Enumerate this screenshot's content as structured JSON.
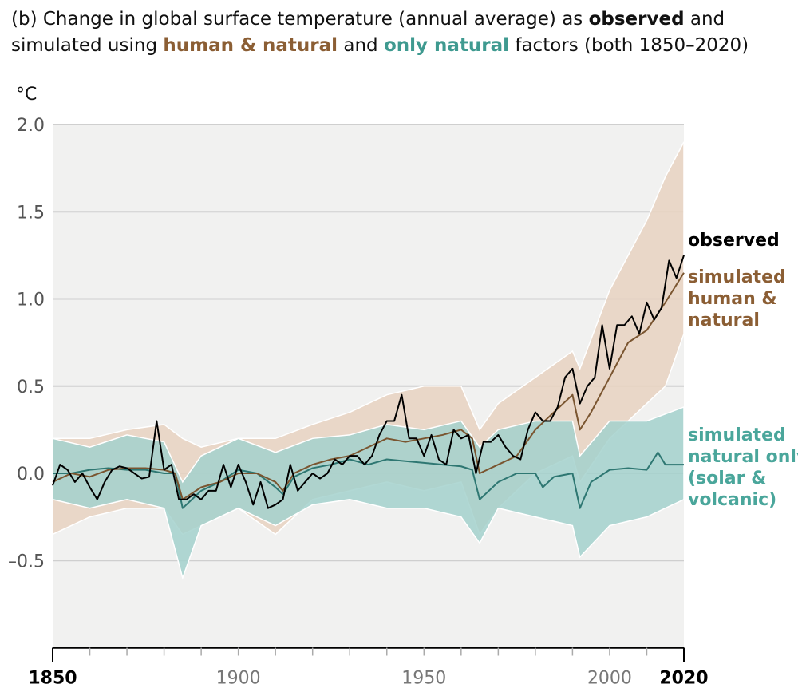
{
  "title": {
    "prefix": "(b) Change in global surface temperature (annual average) as ",
    "observed": "observed",
    "mid1": " and simulated using ",
    "human_natural": "human & natural",
    "mid2": " and ",
    "only_natural": "only natural",
    "suffix": " factors (both 1850–2020)"
  },
  "chart_data": {
    "type": "line",
    "ylabel": "°C",
    "ylim": [
      -1.0,
      2.0
    ],
    "xlim": [
      1850,
      2020
    ],
    "yticks": [
      2.0,
      1.5,
      1.0,
      0.5,
      0.0,
      -0.5
    ],
    "ytick_labels": [
      "2.0",
      "1.5",
      "1.0",
      "0.5",
      "0.0",
      "–0.5"
    ],
    "xticks_labeled": [
      {
        "value": 1850,
        "label": "1850",
        "bold": true
      },
      {
        "value": 1900,
        "label": "1900",
        "bold": false
      },
      {
        "value": 1950,
        "label": "1950",
        "bold": false
      },
      {
        "value": 2000,
        "label": "2000",
        "bold": false
      },
      {
        "value": 2020,
        "label": "2020",
        "bold": true
      }
    ],
    "xtick_minor_step": 10,
    "grid": "horizontal",
    "colors": {
      "plot_bg": "#f1f1f0",
      "observed": "#000000",
      "human_natural": "#7a5530",
      "human_natural_band": "#e8d2c1",
      "natural": "#2e7772",
      "natural_band": "#a3d1cc",
      "natural_label": "#4aa69b",
      "human_label": "#8b5e34"
    },
    "series": [
      {
        "name": "observed",
        "label_lines": [
          "observed"
        ],
        "x": [
          1850,
          1852,
          1854,
          1856,
          1858,
          1860,
          1862,
          1864,
          1866,
          1868,
          1870,
          1872,
          1874,
          1876,
          1878,
          1880,
          1882,
          1884,
          1886,
          1888,
          1890,
          1892,
          1894,
          1896,
          1898,
          1900,
          1902,
          1904,
          1906,
          1908,
          1910,
          1912,
          1914,
          1916,
          1918,
          1920,
          1922,
          1924,
          1926,
          1928,
          1930,
          1932,
          1934,
          1936,
          1938,
          1940,
          1942,
          1944,
          1946,
          1948,
          1950,
          1952,
          1954,
          1956,
          1958,
          1960,
          1962,
          1964,
          1966,
          1968,
          1970,
          1972,
          1974,
          1976,
          1978,
          1980,
          1982,
          1984,
          1986,
          1988,
          1990,
          1992,
          1994,
          1996,
          1998,
          2000,
          2002,
          2004,
          2006,
          2008,
          2010,
          2012,
          2014,
          2016,
          2018,
          2020
        ],
        "y": [
          -0.07,
          0.05,
          0.02,
          -0.05,
          0.0,
          -0.08,
          -0.15,
          -0.05,
          0.02,
          0.04,
          0.03,
          0.0,
          -0.03,
          -0.02,
          0.3,
          0.02,
          0.05,
          -0.15,
          -0.15,
          -0.12,
          -0.15,
          -0.1,
          -0.1,
          0.05,
          -0.08,
          0.05,
          -0.05,
          -0.18,
          -0.05,
          -0.2,
          -0.18,
          -0.15,
          0.05,
          -0.1,
          -0.05,
          0.0,
          -0.03,
          0.0,
          0.08,
          0.05,
          0.1,
          0.1,
          0.05,
          0.1,
          0.22,
          0.3,
          0.3,
          0.45,
          0.2,
          0.2,
          0.1,
          0.22,
          0.08,
          0.05,
          0.25,
          0.2,
          0.22,
          0.0,
          0.18,
          0.18,
          0.22,
          0.15,
          0.1,
          0.08,
          0.25,
          0.35,
          0.3,
          0.3,
          0.38,
          0.55,
          0.6,
          0.4,
          0.5,
          0.55,
          0.85,
          0.6,
          0.85,
          0.85,
          0.9,
          0.8,
          0.98,
          0.88,
          0.95,
          1.22,
          1.12,
          1.25
        ]
      },
      {
        "name": "simulated human & natural",
        "label_lines": [
          "simulated",
          "human &",
          "natural"
        ],
        "x": [
          1850,
          1855,
          1860,
          1865,
          1870,
          1875,
          1880,
          1883,
          1885,
          1890,
          1895,
          1900,
          1905,
          1910,
          1912,
          1915,
          1920,
          1925,
          1930,
          1935,
          1940,
          1945,
          1950,
          1955,
          1960,
          1963,
          1965,
          1970,
          1975,
          1980,
          1985,
          1990,
          1992,
          1995,
          2000,
          2005,
          2010,
          2015,
          2020
        ],
        "y": [
          -0.05,
          0.0,
          -0.02,
          0.02,
          0.03,
          0.03,
          0.02,
          0.0,
          -0.15,
          -0.08,
          -0.05,
          0.0,
          0.0,
          -0.05,
          -0.1,
          0.0,
          0.05,
          0.08,
          0.1,
          0.15,
          0.2,
          0.18,
          0.2,
          0.22,
          0.25,
          0.2,
          0.0,
          0.05,
          0.1,
          0.25,
          0.35,
          0.45,
          0.25,
          0.35,
          0.55,
          0.75,
          0.82,
          0.98,
          1.15
        ],
        "band": {
          "x": [
            1850,
            1860,
            1870,
            1880,
            1885,
            1890,
            1900,
            1910,
            1920,
            1930,
            1940,
            1950,
            1960,
            1965,
            1970,
            1980,
            1990,
            1992,
            2000,
            2010,
            2015,
            2020
          ],
          "upper": [
            0.2,
            0.2,
            0.25,
            0.28,
            0.2,
            0.15,
            0.2,
            0.2,
            0.28,
            0.35,
            0.45,
            0.5,
            0.5,
            0.25,
            0.4,
            0.55,
            0.7,
            0.6,
            1.05,
            1.45,
            1.7,
            1.9
          ],
          "lower": [
            -0.35,
            -0.25,
            -0.2,
            -0.2,
            -0.35,
            -0.3,
            -0.2,
            -0.35,
            -0.15,
            -0.1,
            -0.05,
            -0.1,
            -0.05,
            -0.35,
            -0.2,
            0.0,
            0.1,
            -0.05,
            0.2,
            0.4,
            0.5,
            0.8
          ]
        }
      },
      {
        "name": "simulated natural only (solar & volcanic)",
        "label_lines": [
          "simulated",
          "natural only",
          "(solar &",
          "volcanic)"
        ],
        "x": [
          1850,
          1855,
          1860,
          1865,
          1870,
          1875,
          1880,
          1883,
          1885,
          1890,
          1895,
          1900,
          1905,
          1910,
          1912,
          1915,
          1920,
          1925,
          1930,
          1935,
          1940,
          1945,
          1950,
          1955,
          1960,
          1963,
          1965,
          1970,
          1975,
          1980,
          1982,
          1985,
          1990,
          1992,
          1995,
          2000,
          2005,
          2010,
          2013,
          2015,
          2020
        ],
        "y": [
          0.0,
          0.0,
          0.02,
          0.03,
          0.02,
          0.02,
          0.0,
          0.0,
          -0.2,
          -0.1,
          -0.05,
          0.02,
          0.0,
          -0.08,
          -0.12,
          -0.02,
          0.03,
          0.05,
          0.08,
          0.05,
          0.08,
          0.07,
          0.06,
          0.05,
          0.04,
          0.02,
          -0.15,
          -0.05,
          0.0,
          0.0,
          -0.08,
          -0.02,
          0.0,
          -0.2,
          -0.05,
          0.02,
          0.03,
          0.02,
          0.12,
          0.05,
          0.05
        ],
        "band": {
          "x": [
            1850,
            1860,
            1870,
            1880,
            1885,
            1890,
            1900,
            1910,
            1920,
            1930,
            1940,
            1950,
            1960,
            1965,
            1970,
            1980,
            1990,
            1992,
            2000,
            2010,
            2020
          ],
          "upper": [
            0.2,
            0.15,
            0.22,
            0.18,
            -0.05,
            0.1,
            0.2,
            0.12,
            0.2,
            0.22,
            0.28,
            0.25,
            0.3,
            0.15,
            0.25,
            0.3,
            0.3,
            0.1,
            0.3,
            0.3,
            0.38
          ],
          "lower": [
            -0.15,
            -0.2,
            -0.15,
            -0.2,
            -0.6,
            -0.3,
            -0.2,
            -0.3,
            -0.18,
            -0.15,
            -0.2,
            -0.2,
            -0.25,
            -0.4,
            -0.2,
            -0.25,
            -0.3,
            -0.48,
            -0.3,
            -0.25,
            -0.15
          ]
        }
      }
    ]
  }
}
